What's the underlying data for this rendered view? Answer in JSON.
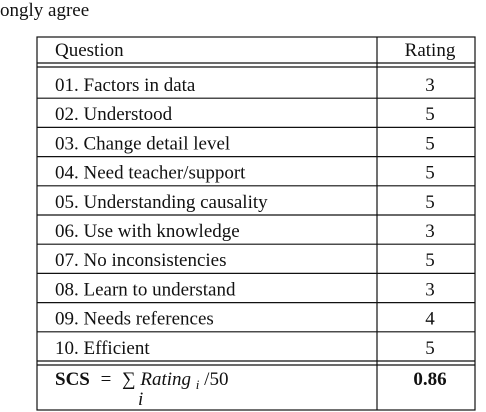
{
  "caption_fragment": "ongly agree",
  "table": {
    "header": [
      "Question",
      "Rating"
    ],
    "rows": [
      [
        "01. Factors in data",
        3
      ],
      [
        "02. Understood",
        5
      ],
      [
        "03. Change detail level",
        5
      ],
      [
        "04. Need teacher/support",
        5
      ],
      [
        "05. Understanding causality",
        5
      ],
      [
        "06. Use with knowledge",
        3
      ],
      [
        "07. No inconsistencies",
        5
      ],
      [
        "08. Learn to understand",
        3
      ],
      [
        "09. Needs references",
        4
      ],
      [
        "10. Efficient",
        5
      ]
    ],
    "footer": {
      "formula": [
        "SCS",
        "=",
        "∑",
        "i",
        "Rating",
        "i",
        "/50"
      ],
      "value": 0.86
    }
  }
}
